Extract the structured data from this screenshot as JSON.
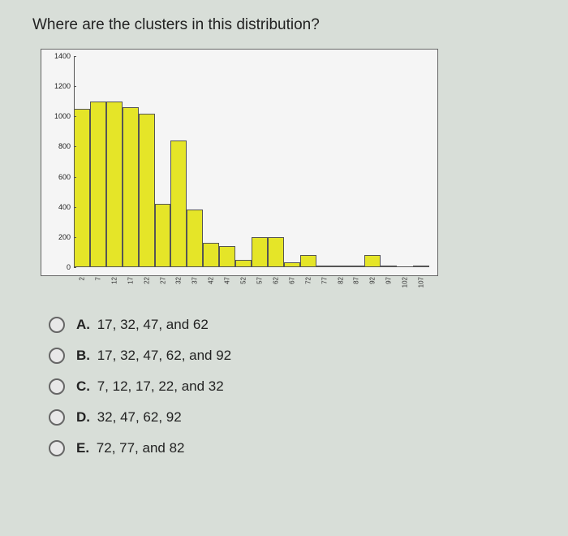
{
  "question": "Where are the clusters in this distribution?",
  "chart": {
    "type": "histogram",
    "ylim": [
      0,
      1400
    ],
    "ytick_step": 200,
    "y_ticks": [
      0,
      200,
      400,
      600,
      800,
      1000,
      1200,
      1400
    ],
    "x_categories": [
      "2",
      "7",
      "12",
      "17",
      "22",
      "27",
      "32",
      "37",
      "42",
      "47",
      "52",
      "57",
      "62",
      "67",
      "72",
      "77",
      "82",
      "87",
      "92",
      "97",
      "102",
      "107"
    ],
    "values": [
      1050,
      1100,
      1100,
      1060,
      1020,
      420,
      840,
      380,
      160,
      140,
      50,
      200,
      200,
      30,
      80,
      10,
      10,
      10,
      80,
      10,
      0,
      10
    ],
    "bar_color": "#e5e528",
    "bar_border_color": "#555555",
    "background_color": "#f5f5f5",
    "grid_color": "#666666",
    "axis_fontsize": 9,
    "bar_width_ratio": 1.0
  },
  "options": [
    {
      "key": "A.",
      "text": "17, 32, 47, and 62"
    },
    {
      "key": "B.",
      "text": "17, 32, 47, 62, and 92"
    },
    {
      "key": "C.",
      "text": "7, 12, 17, 22, and 32"
    },
    {
      "key": "D.",
      "text": "32, 47, 62, 92"
    },
    {
      "key": "E.",
      "text": "72, 77, and 82"
    }
  ]
}
